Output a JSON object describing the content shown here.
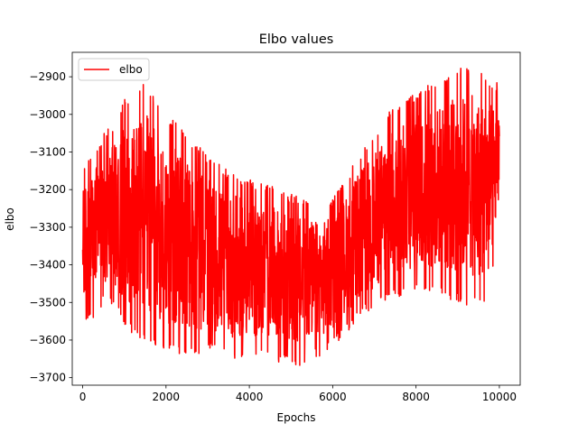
{
  "chart_data": {
    "type": "line",
    "title": "Elbo values",
    "xlabel": "Epochs",
    "ylabel": "elbo",
    "xlim": [
      -250,
      10500
    ],
    "ylim": [
      -3720,
      -2835
    ],
    "xticks": [
      0,
      2000,
      4000,
      6000,
      8000,
      10000
    ],
    "yticks": [
      -3700,
      -3600,
      -3500,
      -3400,
      -3300,
      -3200,
      -3100,
      -3000,
      -2900
    ],
    "grid": false,
    "legend_position": "upper-left",
    "series": [
      {
        "name": "elbo",
        "color": "#ff0000",
        "envelope": {
          "x": [
            0,
            250,
            500,
            750,
            1000,
            1250,
            1500,
            1750,
            2000,
            2250,
            2500,
            2750,
            3000,
            3250,
            3500,
            3750,
            4000,
            4250,
            4500,
            4750,
            5000,
            5250,
            5500,
            5750,
            6000,
            6250,
            6500,
            6750,
            7000,
            7250,
            7500,
            7750,
            8000,
            8250,
            8500,
            8750,
            9000,
            9250,
            9500,
            9750,
            10000
          ],
          "upper": [
            -3150,
            -3100,
            -3050,
            -3020,
            -2960,
            -2940,
            -2910,
            -2960,
            -3000,
            -3020,
            -3060,
            -3080,
            -3110,
            -3130,
            -3150,
            -3160,
            -3170,
            -3180,
            -3190,
            -3200,
            -3210,
            -3220,
            -3230,
            -3240,
            -3220,
            -3180,
            -3130,
            -3080,
            -3050,
            -3000,
            -2980,
            -2960,
            -2940,
            -2920,
            -2910,
            -2890,
            -2880,
            -2870,
            -2880,
            -2900,
            -2920
          ],
          "lower": [
            -3570,
            -3550,
            -3500,
            -3520,
            -3560,
            -3590,
            -3610,
            -3620,
            -3630,
            -3640,
            -3650,
            -3640,
            -3630,
            -3640,
            -3650,
            -3660,
            -3660,
            -3650,
            -3650,
            -3660,
            -3670,
            -3670,
            -3650,
            -3640,
            -3620,
            -3590,
            -3560,
            -3530,
            -3520,
            -3500,
            -3490,
            -3480,
            -3470,
            -3470,
            -3480,
            -3490,
            -3500,
            -3510,
            -3510,
            -3500,
            -3300
          ]
        }
      }
    ]
  }
}
